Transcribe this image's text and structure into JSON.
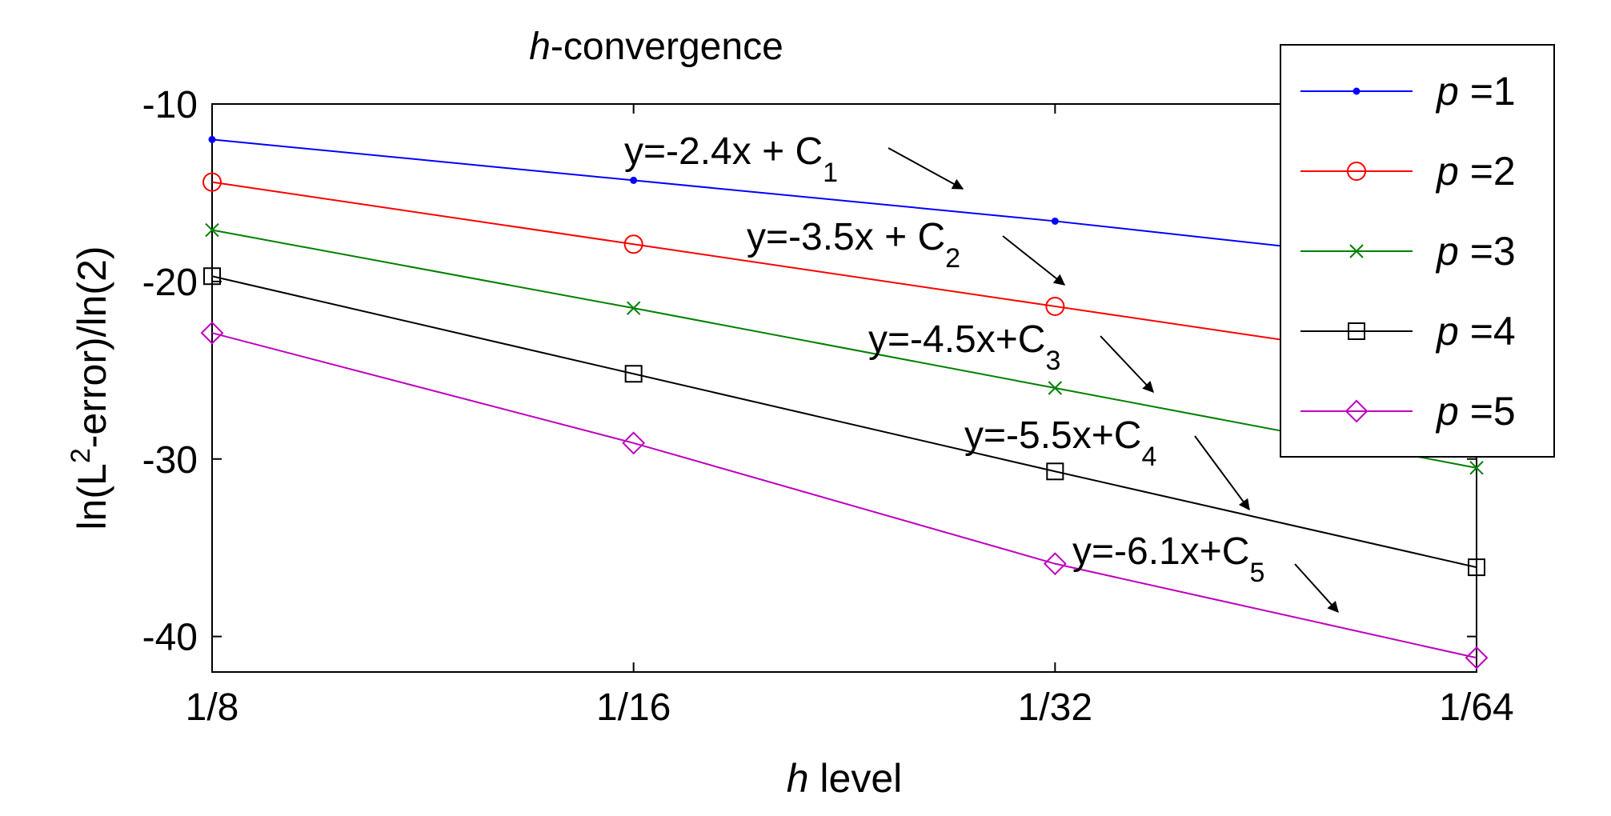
{
  "chart_data": {
    "type": "line",
    "title": {
      "italic": "h",
      "rest": "-convergence"
    },
    "xlabel": {
      "italic": "h",
      "rest": " level"
    },
    "ylabel": {
      "pre": "ln(L",
      "sup": "2",
      "post": "-error)/ln(2)"
    },
    "x": [
      3,
      4,
      5,
      6
    ],
    "xtick_labels": [
      "1/8",
      "1/16",
      "1/32",
      "1/64"
    ],
    "xlim": [
      3,
      6
    ],
    "ylim": [
      -42,
      -10
    ],
    "yticks": [
      -10,
      -20,
      -30,
      -40
    ],
    "grid": false,
    "legend_position": "top-right",
    "series": [
      {
        "name": "p =1",
        "italic": "p",
        "rest": " =1",
        "color": "#0000FF",
        "marker": "point",
        "values": [
          -12,
          -14.3,
          -16.6,
          -19.2
        ]
      },
      {
        "name": "p =2",
        "italic": "p",
        "rest": " =2",
        "color": "#FF0000",
        "marker": "circle",
        "values": [
          -14.4,
          -17.9,
          -21.4,
          -24.9
        ]
      },
      {
        "name": "p =3",
        "italic": "p",
        "rest": " =3",
        "color": "#008000",
        "marker": "x",
        "values": [
          -17.1,
          -21.5,
          -26,
          -30.5
        ]
      },
      {
        "name": "p =4",
        "italic": "p",
        "rest": " =4",
        "color": "#000000",
        "marker": "square",
        "values": [
          -19.7,
          -25.2,
          -30.7,
          -36.1
        ]
      },
      {
        "name": "p =5",
        "italic": "p",
        "rest": " =5",
        "color": "#BF00BF",
        "marker": "diamond",
        "values": [
          -22.9,
          -29.1,
          -35.9,
          -41.2
        ]
      }
    ],
    "annotations": [
      {
        "main": "y=-2.4x + C",
        "sub": "1"
      },
      {
        "main": "y=-3.5x + C",
        "sub": "2"
      },
      {
        "main": "y=-4.5x+C",
        "sub": "3"
      },
      {
        "main": "y=-5.5x+C",
        "sub": "4"
      },
      {
        "main": "y=-6.1x+C",
        "sub": "5"
      }
    ]
  }
}
